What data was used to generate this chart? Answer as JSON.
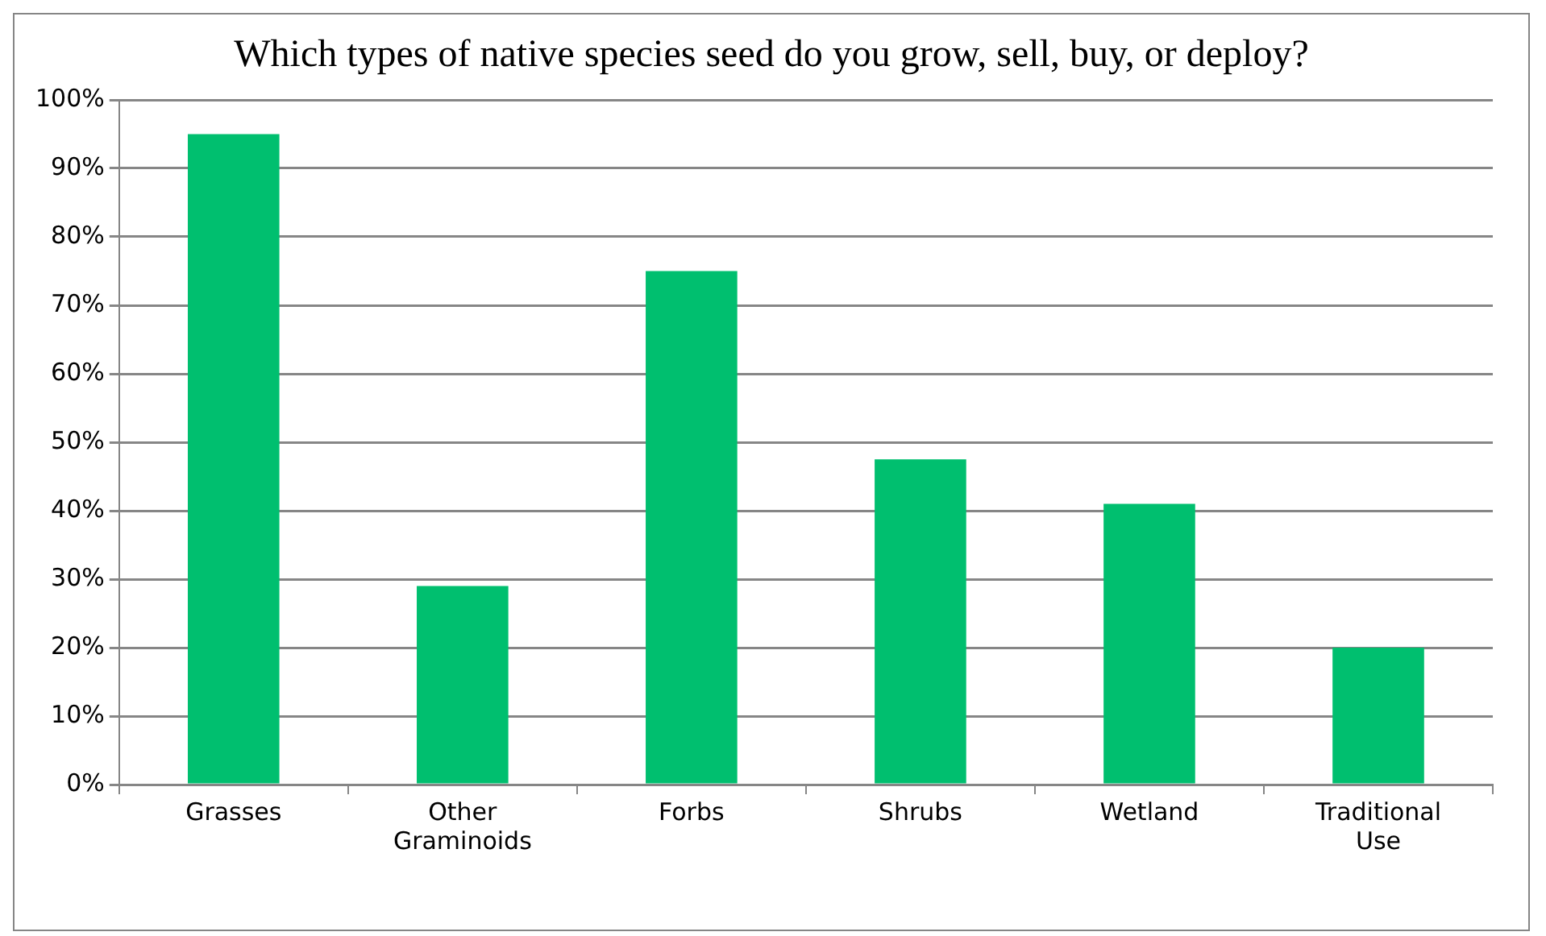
{
  "chart_data": {
    "type": "bar",
    "title": "Which types of native species seed do you grow, sell, buy, or deploy?",
    "categories": [
      "Grasses",
      "Other Graminoids",
      "Forbs",
      "Shrubs",
      "Wetland",
      "Traditional Use"
    ],
    "values": [
      95,
      29,
      75,
      47.5,
      41,
      20
    ],
    "color": "#00bf6f",
    "ylim": [
      0,
      100
    ],
    "yticks": [
      {
        "value": 0,
        "label": "0%"
      },
      {
        "value": 10,
        "label": "10%"
      },
      {
        "value": 20,
        "label": "20%"
      },
      {
        "value": 30,
        "label": "30%"
      },
      {
        "value": 40,
        "label": "40%"
      },
      {
        "value": 50,
        "label": "50%"
      },
      {
        "value": 60,
        "label": "60%"
      },
      {
        "value": 70,
        "label": "70%"
      },
      {
        "value": 80,
        "label": "80%"
      },
      {
        "value": 90,
        "label": "90%"
      },
      {
        "value": 100,
        "label": "100%"
      }
    ],
    "grid": "y",
    "legend": false
  }
}
